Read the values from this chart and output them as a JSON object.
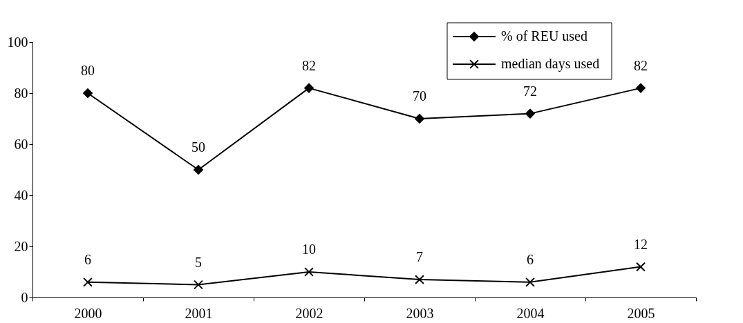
{
  "chart_data": {
    "type": "line",
    "categories": [
      "2000",
      "2001",
      "2002",
      "2003",
      "2004",
      "2005"
    ],
    "series": [
      {
        "name": "% of REU used",
        "color": "#000000",
        "marker": "diamond",
        "values": [
          80,
          50,
          82,
          70,
          72,
          82
        ]
      },
      {
        "name": "median days used",
        "color": "#000000",
        "marker": "cross",
        "values": [
          6,
          5,
          10,
          7,
          6,
          12
        ]
      }
    ],
    "ylim": [
      0,
      100
    ],
    "yticks": [
      0,
      20,
      40,
      60,
      80,
      100
    ],
    "grid": false,
    "legend": "top right",
    "data_labels": true,
    "line_style": "solid"
  }
}
